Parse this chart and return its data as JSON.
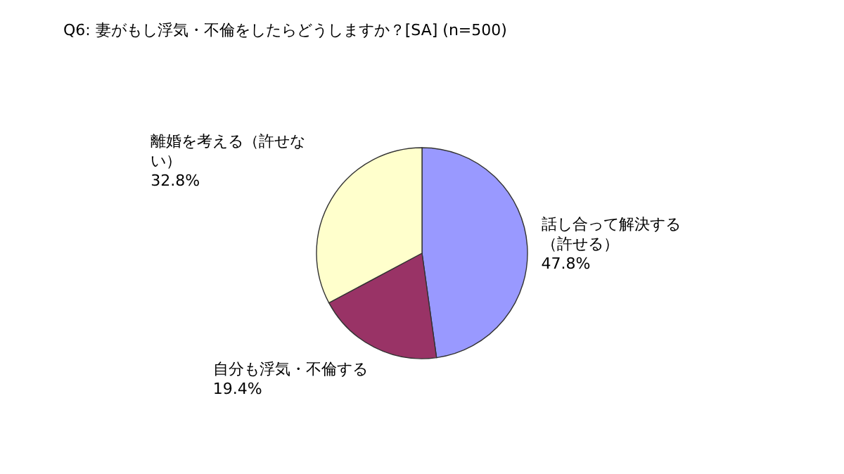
{
  "chart_data": {
    "type": "pie",
    "title": "Q6: 妻がもし浮気・不倫をしたらどうしますか？[SA]  (n=500)",
    "categories": [
      "話し合って解決する（許せる）",
      "自分も浮気・不倫する",
      "離婚を考える（許せない）"
    ],
    "values": [
      47.8,
      19.4,
      32.8
    ],
    "colors": [
      "#9999ff",
      "#993366",
      "#ffffcc"
    ],
    "value_labels": [
      "47.8%",
      "19.4%",
      "32.8%"
    ],
    "legend": false
  }
}
